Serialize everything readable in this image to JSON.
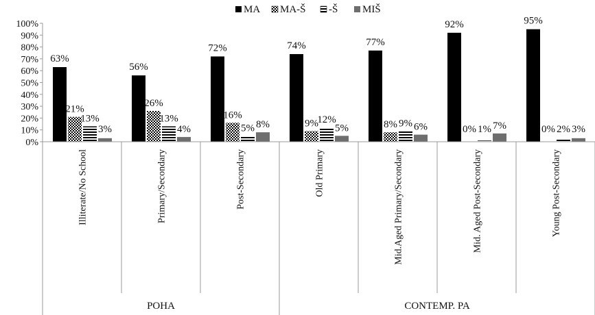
{
  "chart_data": {
    "type": "bar",
    "categories": [
      "Illiterate/No School",
      "Primary/Secondary",
      "Post-Secondary",
      "Old Primary",
      "Mid.Aged Primary/Secondary",
      "Mid. Aged Post-Secondary",
      "Young Post-Secondary"
    ],
    "groups": [
      {
        "label": "POHA",
        "categories": [
          0,
          1,
          2
        ]
      },
      {
        "label": "CONTEMP. PA",
        "categories": [
          3,
          4,
          5,
          6
        ]
      }
    ],
    "series": [
      {
        "name": "MA",
        "values": [
          63,
          56,
          72,
          74,
          77,
          92,
          95
        ],
        "labels": [
          "63%",
          "56%",
          "72%",
          "74%",
          "77%",
          "92%",
          "95%"
        ],
        "pattern": "solid",
        "color": "#000000"
      },
      {
        "name": "MA-Š",
        "values": [
          21,
          26,
          16,
          9,
          8,
          0,
          0
        ],
        "labels": [
          "21%",
          "26%",
          "16%",
          "9%",
          "8%",
          "0%",
          "0%"
        ],
        "pattern": "checker",
        "color": "#000000"
      },
      {
        "name": "-Š",
        "values": [
          13,
          13,
          5,
          12,
          9,
          1,
          2
        ],
        "labels": [
          "13%",
          "13%",
          "5%",
          "12%",
          "9%",
          "1%",
          "2%"
        ],
        "pattern": "hstripes",
        "color": "#000000"
      },
      {
        "name": "MIŠ",
        "values": [
          3,
          4,
          8,
          5,
          6,
          7,
          3
        ],
        "labels": [
          "3%",
          "4%",
          "8%",
          "5%",
          "6%",
          "7%",
          "3%"
        ],
        "pattern": "solid",
        "color": "#6e6e6e"
      }
    ],
    "yticks": [
      "0%",
      "10%",
      "20%",
      "30%",
      "40%",
      "50%",
      "60%",
      "70%",
      "80%",
      "90%",
      "100%"
    ],
    "ylim": [
      0,
      100
    ],
    "grid": false,
    "legend": "top"
  }
}
